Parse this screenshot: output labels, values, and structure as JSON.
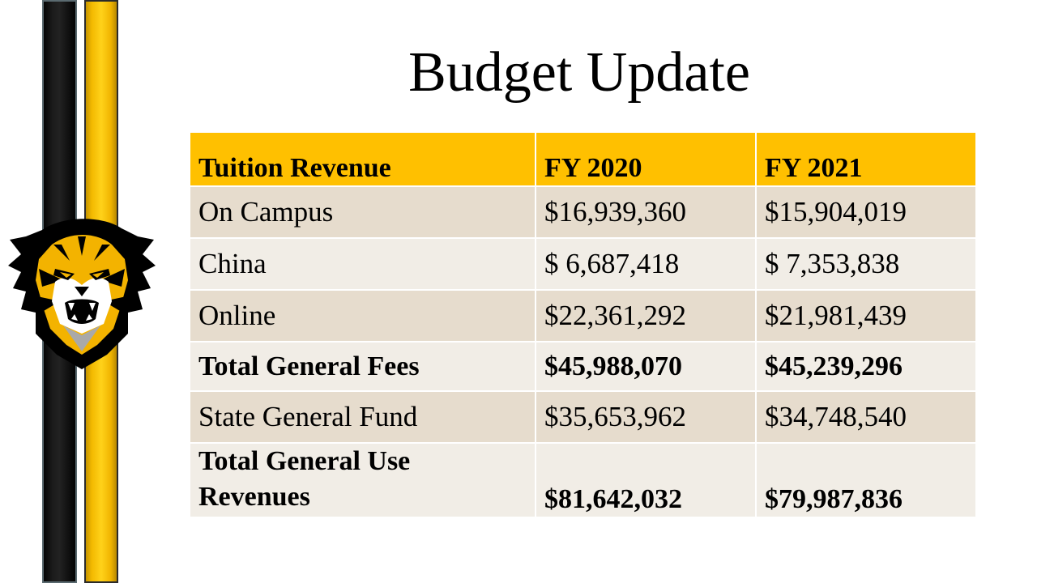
{
  "slide": {
    "title": "Budget Update"
  },
  "table": {
    "header": [
      "Tuition Revenue",
      "FY 2020",
      "FY 2021"
    ],
    "rows": [
      {
        "label": "On Campus",
        "fy2020": "$16,939,360",
        "fy2021": "$15,904,019"
      },
      {
        "label": "China",
        "fy2020": "$ 6,687,418",
        "fy2021": "$ 7,353,838"
      },
      {
        "label": "Online",
        "fy2020": "$22,361,292",
        "fy2021": "$21,981,439"
      },
      {
        "label": "Total General Fees",
        "fy2020": "$45,988,070",
        "fy2021": "$45,239,296"
      },
      {
        "label": "State General Fund",
        "fy2020": "$35,653,962",
        "fy2021": "$34,748,540"
      },
      {
        "label": "Total General Use Revenues",
        "fy2020": "$81,642,032",
        "fy2021": "$79,987,836"
      }
    ]
  },
  "colors": {
    "header_gold": "#ffc000",
    "row_dark": "#e6dccd",
    "row_light": "#f1ede6",
    "stripe_black": "#000000",
    "stripe_gold": "#ffd21a"
  },
  "icons": {
    "logo": "tiger-head-icon"
  }
}
